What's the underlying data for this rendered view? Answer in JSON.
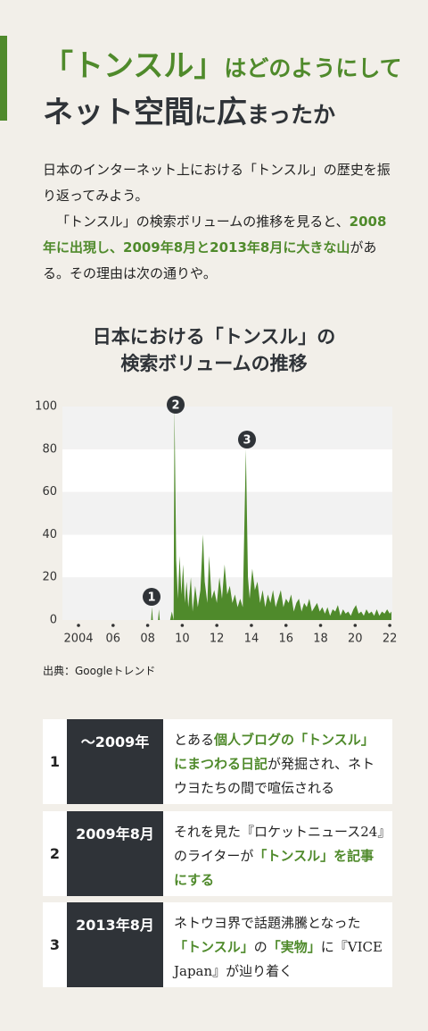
{
  "header": {
    "title": [
      [
        "「トンスル」",
        "はどのようにして"
      ],
      [
        "ネット空間",
        "に",
        "広",
        "まったか"
      ]
    ]
  },
  "intro": [
    [
      {
        "text": "日本のインターネット上における「トンスル」の歴史を振り返ってみよう。",
        "highlight": false
      }
    ],
    [
      {
        "text": "「トンスル」の検索ボリュームの推移を見ると、",
        "highlight": false
      },
      {
        "text": "2008年に出現し、2009年8月と2013年8月に大きな山",
        "highlight": true
      },
      {
        "text": "がある。その理由は次の通りや。",
        "highlight": false
      }
    ]
  ],
  "chart_data": {
    "type": "area",
    "title": [
      "日本における「トンスル」の",
      "検索ボリュームの推移"
    ],
    "x": [
      2008.2,
      2008.25,
      2008.3,
      2008.6,
      2008.65,
      2008.7,
      2009.3,
      2009.4,
      2009.5,
      2009.55,
      2009.65,
      2009.75,
      2009.85,
      2009.95,
      2010.05,
      2010.15,
      2010.25,
      2010.35,
      2010.5,
      2010.6,
      2010.75,
      2010.9,
      2011.05,
      2011.2,
      2011.3,
      2011.45,
      2011.55,
      2011.7,
      2011.85,
      2012.0,
      2012.15,
      2012.3,
      2012.45,
      2012.6,
      2012.75,
      2012.9,
      2013.05,
      2013.2,
      2013.35,
      2013.5,
      2013.68,
      2013.8,
      2013.9,
      2014.05,
      2014.2,
      2014.35,
      2014.5,
      2014.65,
      2014.8,
      2014.95,
      2015.1,
      2015.25,
      2015.4,
      2015.55,
      2015.7,
      2015.85,
      2016.0,
      2016.15,
      2016.3,
      2016.45,
      2016.6,
      2016.75,
      2016.9,
      2017.05,
      2017.2,
      2017.35,
      2017.5,
      2017.65,
      2017.8,
      2017.95,
      2018.1,
      2018.25,
      2018.4,
      2018.55,
      2018.7,
      2018.85,
      2019.0,
      2019.15,
      2019.3,
      2019.45,
      2019.6,
      2019.75,
      2019.9,
      2020.05,
      2020.2,
      2020.35,
      2020.5,
      2020.65,
      2020.8,
      2020.95,
      2021.1,
      2021.25,
      2021.4,
      2021.55,
      2021.7,
      2021.85,
      2022.0,
      2022.1
    ],
    "values": [
      0,
      6,
      0,
      0,
      5,
      0,
      0,
      4,
      0,
      100,
      28,
      10,
      30,
      12,
      26,
      8,
      18,
      6,
      20,
      4,
      16,
      6,
      14,
      40,
      18,
      8,
      30,
      10,
      14,
      8,
      20,
      10,
      26,
      12,
      16,
      8,
      12,
      6,
      10,
      6,
      80,
      20,
      10,
      24,
      14,
      18,
      8,
      14,
      6,
      12,
      8,
      14,
      6,
      10,
      14,
      6,
      10,
      8,
      12,
      4,
      8,
      10,
      4,
      8,
      6,
      10,
      4,
      6,
      8,
      4,
      6,
      3,
      6,
      2,
      5,
      4,
      7,
      2,
      5,
      3,
      4,
      2,
      5,
      7,
      3,
      4,
      2,
      5,
      3,
      4,
      2,
      5,
      2,
      4,
      3,
      5,
      3,
      4
    ],
    "color": "#4f8a2b",
    "xlim": [
      2003.07,
      2022.15
    ],
    "ylim": [
      0,
      100
    ],
    "yticks": [
      0,
      20,
      40,
      60,
      80,
      100
    ],
    "xticks": [
      2004,
      {
        "value": 2006,
        "label": "06"
      },
      {
        "value": 2008,
        "label": "08"
      },
      {
        "value": 2010,
        "label": "10"
      },
      {
        "value": 2012,
        "label": "12"
      },
      {
        "value": 2014,
        "label": "14"
      },
      {
        "value": 2016,
        "label": "16"
      },
      {
        "value": 2018,
        "label": "18"
      },
      {
        "value": 2020,
        "label": "20"
      },
      {
        "value": 2022,
        "label": "22"
      }
    ],
    "grid": true,
    "annotations": [
      "1",
      "2",
      "3"
    ],
    "source": "出典：Googleトレンド"
  },
  "table": {
    "rows": [
      [
        "1",
        "〜2009年",
        [
          {
            "text": "とある",
            "highlight": false
          },
          {
            "text": "個人ブログの「トンスル」にまつわる日記",
            "highlight": true
          },
          {
            "text": "が発掘され、ネトウヨたちの間で喧伝される",
            "highlight": false
          }
        ]
      ],
      [
        "2",
        "2009年8月",
        [
          {
            "text": "それを見た『ロケットニュース24』のライターが",
            "highlight": false
          },
          {
            "text": "「トンスル」を記事にする",
            "highlight": true
          }
        ]
      ],
      [
        "3",
        "2013年8月",
        [
          {
            "text": "ネトウヨ界で話題沸騰となった",
            "highlight": false
          },
          {
            "text": "「トンスル」",
            "highlight": true
          },
          {
            "text": "の",
            "highlight": false
          },
          {
            "text": "「実物」",
            "highlight": true
          },
          {
            "text": "に『VICE Japan』が辿り着く",
            "highlight": false
          }
        ]
      ]
    ]
  }
}
